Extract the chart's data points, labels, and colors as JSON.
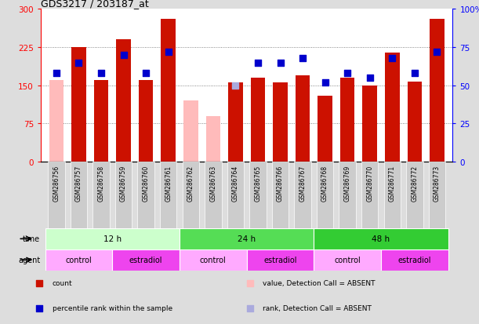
{
  "title": "GDS3217 / 203187_at",
  "samples": [
    "GSM286756",
    "GSM286757",
    "GSM286758",
    "GSM286759",
    "GSM286760",
    "GSM286761",
    "GSM286762",
    "GSM286763",
    "GSM286764",
    "GSM286765",
    "GSM286766",
    "GSM286767",
    "GSM286768",
    "GSM286769",
    "GSM286770",
    "GSM286771",
    "GSM286772",
    "GSM286773"
  ],
  "counts": [
    160,
    225,
    160,
    240,
    160,
    280,
    120,
    90,
    155,
    165,
    155,
    170,
    130,
    165,
    150,
    215,
    157,
    280
  ],
  "percentiles_pct": [
    58,
    65,
    58,
    70,
    58,
    72,
    null,
    null,
    50,
    65,
    65,
    68,
    52,
    58,
    55,
    68,
    58,
    72
  ],
  "absent_count": [
    true,
    false,
    false,
    false,
    false,
    false,
    true,
    true,
    false,
    false,
    false,
    false,
    false,
    false,
    false,
    false,
    false,
    false
  ],
  "absent_rank": [
    false,
    false,
    false,
    false,
    false,
    false,
    false,
    false,
    true,
    false,
    false,
    false,
    false,
    false,
    false,
    false,
    false,
    false
  ],
  "ylim_left": [
    0,
    300
  ],
  "ylim_right": [
    0,
    100
  ],
  "yticks_left": [
    0,
    75,
    150,
    225,
    300
  ],
  "yticks_right": [
    0,
    25,
    50,
    75,
    100
  ],
  "color_count_present": "#cc1100",
  "color_count_absent": "#ffbbbb",
  "color_rank_present": "#0000cc",
  "color_rank_absent": "#aaaadd",
  "time_groups": [
    {
      "label": "12 h",
      "start": 0,
      "end": 6,
      "color": "#ccffcc"
    },
    {
      "label": "24 h",
      "start": 6,
      "end": 12,
      "color": "#55dd55"
    },
    {
      "label": "48 h",
      "start": 12,
      "end": 18,
      "color": "#33cc33"
    }
  ],
  "agent_groups": [
    {
      "label": "control",
      "start": 0,
      "end": 3,
      "color": "#ffaaff"
    },
    {
      "label": "estradiol",
      "start": 3,
      "end": 6,
      "color": "#ee44ee"
    },
    {
      "label": "control",
      "start": 6,
      "end": 9,
      "color": "#ffaaff"
    },
    {
      "label": "estradiol",
      "start": 9,
      "end": 12,
      "color": "#ee44ee"
    },
    {
      "label": "control",
      "start": 12,
      "end": 15,
      "color": "#ffaaff"
    },
    {
      "label": "estradiol",
      "start": 15,
      "end": 18,
      "color": "#ee44ee"
    }
  ],
  "fig_bg_color": "#dddddd",
  "plot_bg_color": "#ffffff",
  "grid_color": "#666666",
  "bar_width": 0.65,
  "marker_size": 32
}
